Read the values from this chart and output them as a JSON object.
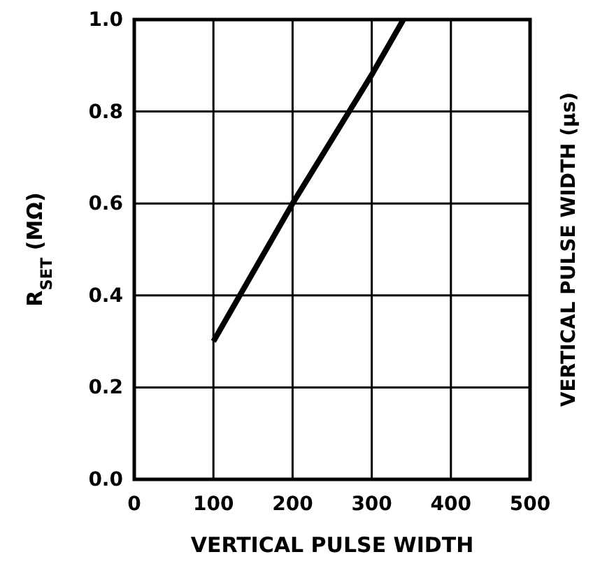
{
  "chart_data": {
    "type": "line",
    "xlabel": "VERTICAL PULSE WIDTH",
    "ylabel": "R$_{SET}$ (MΩ)",
    "annotations": [
      "VERTICAL PULSE WIDTH (µs)"
    ],
    "series": [
      {
        "color": "#000000",
        "x": [
          100,
          200,
          300,
          340
        ],
        "values": [
          0.3,
          0.6,
          0.88,
          1.0
        ]
      }
    ],
    "xlim": [
      0,
      500
    ],
    "xticks": [
      0,
      100,
      200,
      300,
      400,
      500
    ],
    "ylim": [
      0,
      1.0
    ],
    "yticks": [
      {
        "value": 0,
        "label": "0.0"
      },
      0.2,
      0.4,
      0.6,
      0.8,
      {
        "value": 1.0,
        "label": "1.0"
      }
    ],
    "grid": true,
    "line_style": "solid",
    "marker": "none"
  }
}
